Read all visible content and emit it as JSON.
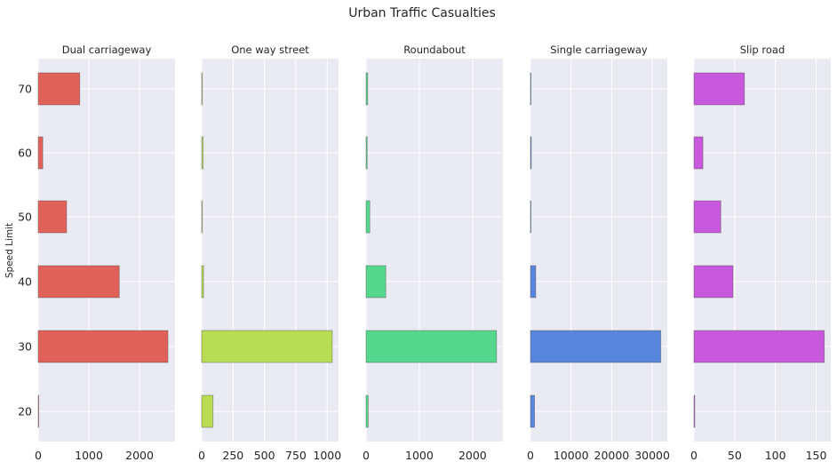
{
  "chart_data": {
    "type": "bar",
    "orientation": "horizontal",
    "title": "Urban Traffic Casualties",
    "ylabel": "Speed Limit",
    "categories": [
      "20",
      "30",
      "40",
      "50",
      "60",
      "70"
    ],
    "panels": [
      {
        "name": "Dual carriageway",
        "color": "#e0605a",
        "values": [
          10,
          2560,
          1600,
          560,
          90,
          820
        ],
        "xlim": [
          0,
          2700
        ],
        "xticks": [
          0,
          1000,
          2000
        ],
        "xtick_labels": [
          "0",
          "1000",
          "2000"
        ]
      },
      {
        "name": "One way street",
        "color": "#b8dd55",
        "values": [
          90,
          1040,
          15,
          5,
          10,
          5
        ],
        "xlim": [
          0,
          1090
        ],
        "xticks": [
          0,
          250,
          500,
          750,
          1000
        ],
        "xtick_labels": [
          "0",
          "250",
          "500",
          "750",
          "1000"
        ]
      },
      {
        "name": "Roundabout",
        "color": "#55d88d",
        "values": [
          40,
          2450,
          370,
          70,
          20,
          30
        ],
        "xlim": [
          0,
          2570
        ],
        "xticks": [
          0,
          1000,
          2000
        ],
        "xtick_labels": [
          "0",
          "1000",
          "2000"
        ]
      },
      {
        "name": "Single carriageway",
        "color": "#5886dc",
        "values": [
          1000,
          32100,
          1300,
          100,
          200,
          100
        ],
        "xlim": [
          0,
          33700
        ],
        "xticks": [
          0,
          10000,
          20000,
          30000
        ],
        "xtick_labels": [
          "0",
          "10000",
          "20000",
          "30000"
        ]
      },
      {
        "name": "Slip road",
        "color": "#c858dc",
        "values": [
          1,
          160,
          48,
          33,
          11,
          62
        ],
        "xlim": [
          0,
          168
        ],
        "xticks": [
          0,
          50,
          100,
          150
        ],
        "xtick_labels": [
          "0",
          "50",
          "100",
          "150"
        ]
      }
    ]
  }
}
